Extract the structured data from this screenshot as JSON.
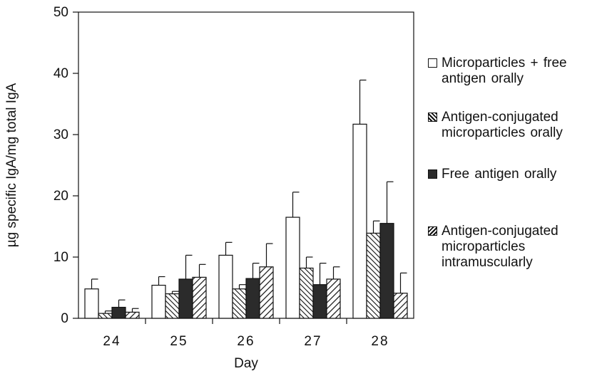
{
  "chart_data": {
    "type": "bar",
    "title": "",
    "xlabel": "Day",
    "ylabel": "µg specific IgA/mg total IgA",
    "ylim": [
      0,
      50
    ],
    "yticks": [
      0,
      10,
      20,
      30,
      40,
      50
    ],
    "ytick_labels": [
      "0",
      "10",
      "20",
      "30",
      "40",
      "50"
    ],
    "categories": [
      "24",
      "25",
      "26",
      "27",
      "28"
    ],
    "series": [
      {
        "name": "Microparticles + free antigen orally",
        "pattern": "white",
        "values": [
          4.8,
          5.4,
          10.3,
          16.5,
          31.7
        ],
        "errors": [
          1.6,
          1.4,
          2.1,
          4.1,
          7.2
        ]
      },
      {
        "name": "Antigen-conjugated microparticles orally",
        "pattern": "backslash-hatch",
        "values": [
          0.8,
          4.0,
          4.8,
          8.2,
          13.9
        ],
        "errors": [
          0.4,
          0.4,
          0.7,
          1.8,
          2.0
        ]
      },
      {
        "name": "Free antigen orally",
        "pattern": "dark",
        "values": [
          1.8,
          6.4,
          6.5,
          5.5,
          15.5
        ],
        "errors": [
          1.2,
          3.9,
          2.5,
          3.5,
          6.8
        ]
      },
      {
        "name": "Antigen-conjugated microparticles intramuscularly",
        "pattern": "slash-hatch",
        "values": [
          1.0,
          6.7,
          8.4,
          6.4,
          4.1
        ],
        "errors": [
          0.6,
          2.1,
          3.8,
          2.0,
          3.3
        ]
      }
    ],
    "legend": {
      "placement": "right",
      "labels": [
        "Microparticles + free\nantigen orally",
        "Antigen-conjugated\nmicroparticles orally",
        "Free antigen orally",
        "Antigen-conjugated\nmicroparticles\nintramuscularly"
      ]
    },
    "grid": false,
    "colors": {
      "axis": "#111111",
      "dark_fill": "#2b2b2b",
      "white_fill": "#ffffff"
    }
  }
}
